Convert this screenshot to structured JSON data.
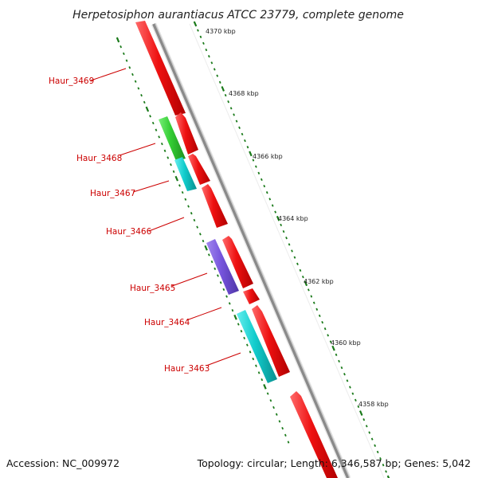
{
  "title": "Herpetosiphon aurantiacus ATCC 23779, complete genome",
  "colors": {
    "backbone": "#8a8a8a",
    "tick": "#1a7a1a",
    "label": "#cc0000",
    "red": "#ee1111",
    "green": "#33cc33",
    "cyan": "#11cccc",
    "purple": "#7755dd"
  },
  "ticks": [
    {
      "label": "4370 kbp"
    },
    {
      "label": "4368 kbp"
    },
    {
      "label": "4366 kbp"
    },
    {
      "label": "4364 kbp"
    },
    {
      "label": "4362 kbp"
    },
    {
      "label": "4360 kbp"
    },
    {
      "label": "4358 kbp"
    }
  ],
  "gene_labels": [
    {
      "label": "Haur_3469"
    },
    {
      "label": "Haur_3468"
    },
    {
      "label": "Haur_3467"
    },
    {
      "label": "Haur_3466"
    },
    {
      "label": "Haur_3465"
    },
    {
      "label": "Haur_3464"
    },
    {
      "label": "Haur_3463"
    }
  ],
  "footer": {
    "accession": "Accession: NC_009972",
    "summary": "Topology: circular; Length: 6,346,587 bp; Genes: 5,042"
  }
}
